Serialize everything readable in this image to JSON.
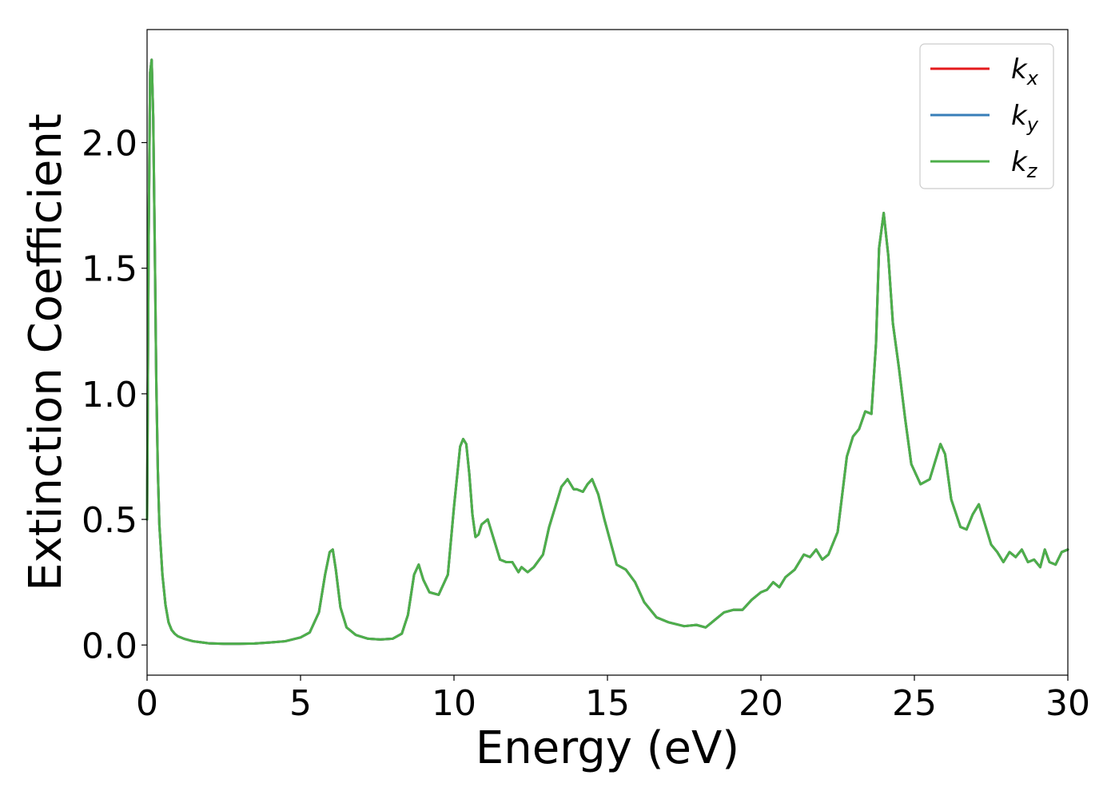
{
  "chart_data": {
    "type": "line",
    "title": "",
    "xlabel": "Energy (eV)",
    "ylabel": "Extinction Coefficient",
    "xlim": [
      0,
      30
    ],
    "ylim": [
      -0.12,
      2.45
    ],
    "xticks": [
      0,
      5,
      10,
      15,
      20,
      25,
      30
    ],
    "xtick_labels": [
      "0",
      "5",
      "10",
      "15",
      "20",
      "25",
      "30"
    ],
    "yticks": [
      0.0,
      0.5,
      1.0,
      1.5,
      2.0
    ],
    "ytick_labels": [
      "0.0",
      "0.5",
      "1.0",
      "1.5",
      "2.0"
    ],
    "grid": false,
    "legend_position": "top-right",
    "x": [
      0.0,
      0.05,
      0.1,
      0.15,
      0.2,
      0.25,
      0.3,
      0.35,
      0.4,
      0.5,
      0.6,
      0.7,
      0.8,
      0.9,
      1.0,
      1.2,
      1.5,
      2.0,
      2.5,
      3.0,
      3.5,
      4.0,
      4.5,
      5.0,
      5.3,
      5.6,
      5.8,
      5.95,
      6.05,
      6.15,
      6.3,
      6.5,
      6.8,
      7.2,
      7.6,
      8.0,
      8.3,
      8.5,
      8.7,
      8.85,
      9.0,
      9.2,
      9.5,
      9.8,
      10.0,
      10.2,
      10.3,
      10.4,
      10.5,
      10.6,
      10.7,
      10.8,
      10.9,
      11.1,
      11.3,
      11.5,
      11.7,
      11.9,
      12.1,
      12.2,
      12.4,
      12.6,
      12.9,
      13.1,
      13.3,
      13.5,
      13.7,
      13.9,
      14.0,
      14.2,
      14.35,
      14.5,
      14.7,
      14.9,
      15.1,
      15.3,
      15.6,
      15.9,
      16.2,
      16.6,
      17.0,
      17.5,
      17.9,
      18.2,
      18.5,
      18.8,
      19.1,
      19.4,
      19.7,
      20.0,
      20.2,
      20.4,
      20.6,
      20.8,
      21.1,
      21.4,
      21.6,
      21.8,
      22.0,
      22.2,
      22.5,
      22.8,
      23.0,
      23.2,
      23.4,
      23.6,
      23.75,
      23.85,
      24.0,
      24.15,
      24.3,
      24.5,
      24.7,
      24.9,
      25.2,
      25.5,
      25.7,
      25.85,
      26.0,
      26.2,
      26.5,
      26.7,
      26.9,
      27.1,
      27.3,
      27.5,
      27.7,
      27.9,
      28.1,
      28.3,
      28.5,
      28.7,
      28.9,
      29.1,
      29.25,
      29.4,
      29.6,
      29.8,
      30.0
    ],
    "series": [
      {
        "name": "k_x",
        "label_main": "k",
        "label_sub": "x",
        "color": "#e41a1c"
      },
      {
        "name": "k_y",
        "label_main": "k",
        "label_sub": "y",
        "color": "#377eb8"
      },
      {
        "name": "k_z",
        "label_main": "k",
        "label_sub": "z",
        "color": "#4daf4a"
      }
    ],
    "values": [
      0.5,
      1.6,
      2.28,
      2.33,
      2.1,
      1.6,
      1.05,
      0.7,
      0.48,
      0.28,
      0.16,
      0.09,
      0.06,
      0.045,
      0.035,
      0.025,
      0.015,
      0.007,
      0.005,
      0.005,
      0.006,
      0.01,
      0.015,
      0.03,
      0.05,
      0.13,
      0.28,
      0.37,
      0.38,
      0.3,
      0.15,
      0.07,
      0.04,
      0.025,
      0.022,
      0.025,
      0.045,
      0.12,
      0.28,
      0.32,
      0.26,
      0.21,
      0.2,
      0.28,
      0.55,
      0.79,
      0.82,
      0.8,
      0.68,
      0.52,
      0.43,
      0.44,
      0.48,
      0.5,
      0.42,
      0.34,
      0.33,
      0.33,
      0.29,
      0.31,
      0.29,
      0.31,
      0.36,
      0.47,
      0.55,
      0.63,
      0.66,
      0.62,
      0.62,
      0.61,
      0.64,
      0.66,
      0.6,
      0.5,
      0.41,
      0.32,
      0.3,
      0.25,
      0.17,
      0.11,
      0.09,
      0.075,
      0.08,
      0.07,
      0.1,
      0.13,
      0.14,
      0.14,
      0.18,
      0.21,
      0.22,
      0.25,
      0.23,
      0.27,
      0.3,
      0.36,
      0.35,
      0.38,
      0.34,
      0.36,
      0.45,
      0.75,
      0.83,
      0.86,
      0.93,
      0.92,
      1.2,
      1.58,
      1.72,
      1.55,
      1.28,
      1.1,
      0.9,
      0.72,
      0.64,
      0.66,
      0.74,
      0.8,
      0.76,
      0.58,
      0.47,
      0.46,
      0.52,
      0.56,
      0.48,
      0.4,
      0.37,
      0.33,
      0.37,
      0.35,
      0.38,
      0.33,
      0.34,
      0.31,
      0.38,
      0.33,
      0.32,
      0.37,
      0.38
    ]
  }
}
